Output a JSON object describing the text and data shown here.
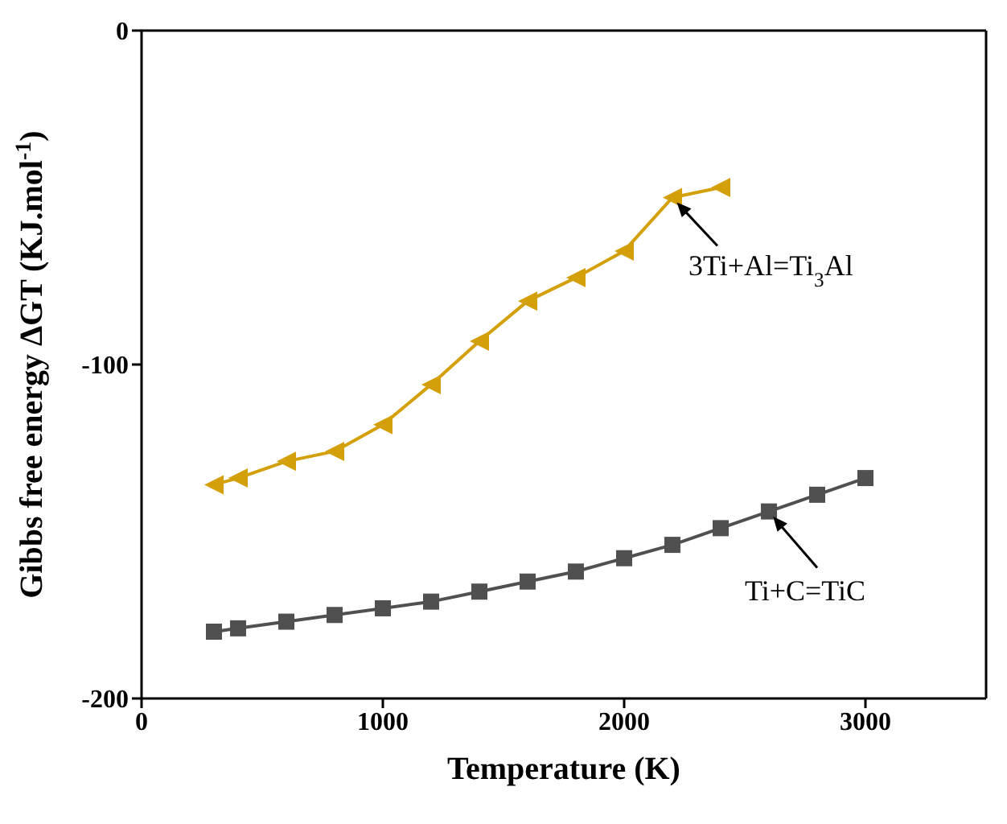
{
  "chart_data": {
    "type": "line",
    "xlabel": "Temperature (K)",
    "ylabel": "Gibbs free energy ΔGT (KJ.mol$^{-1}$)",
    "xlim": [
      0,
      3500
    ],
    "xticks": [
      0,
      1000,
      2000,
      3000
    ],
    "ylim": [
      -200,
      0
    ],
    "yticks": [
      -200,
      -100,
      0
    ],
    "grid": false,
    "legend": false,
    "series": [
      {
        "color": "#d4a00a",
        "marker": "triangle",
        "x": [
          300,
          400,
          600,
          800,
          1000,
          1200,
          1400,
          1600,
          1800,
          2000,
          2200,
          2400
        ],
        "values": [
          -136,
          -134,
          -129,
          -126,
          -118,
          -106,
          -93,
          -81,
          -74,
          -66,
          -50,
          -47
        ]
      },
      {
        "color": "#505050",
        "marker": "square",
        "x": [
          300,
          400,
          600,
          800,
          1000,
          1200,
          1400,
          1600,
          1800,
          2000,
          2200,
          2400,
          2600,
          2800,
          3000
        ],
        "values": [
          -180,
          -179,
          -177,
          -175,
          -173,
          -171,
          -168,
          -165,
          -162,
          -158,
          -154,
          -149,
          -144,
          -139,
          -134
        ]
      }
    ],
    "annotations": [
      {
        "text": "3Ti+Al=Ti$_{3}$Al",
        "x": 2200,
        "y": -50
      },
      {
        "text": "Ti+C=TiC",
        "x": 2600,
        "y": -144
      }
    ]
  }
}
